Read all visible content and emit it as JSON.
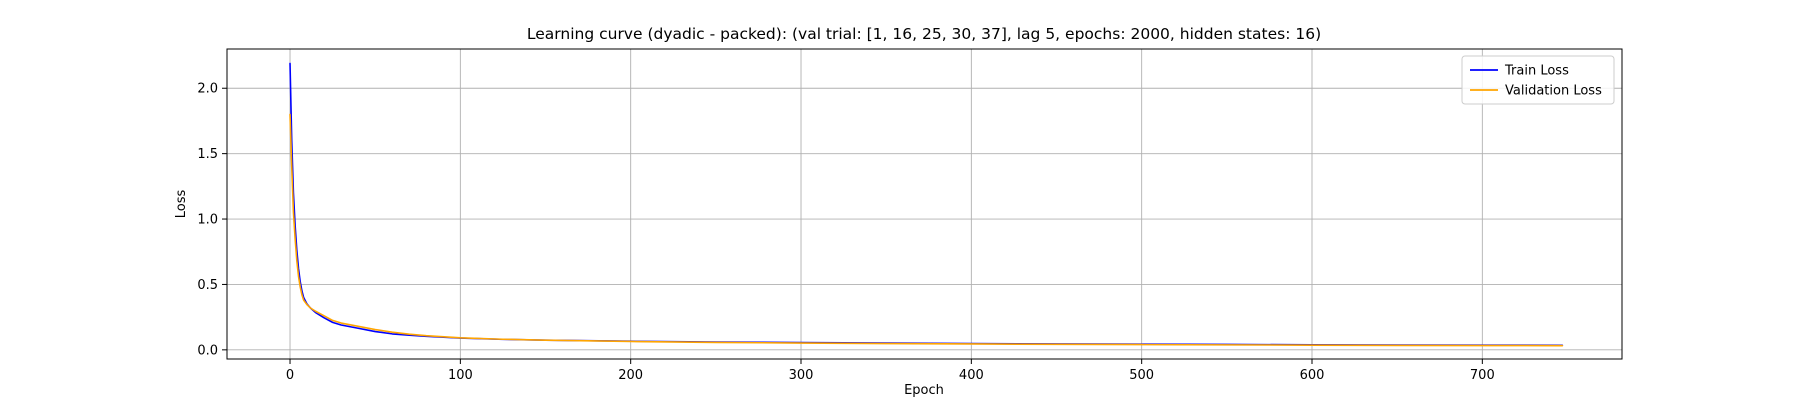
{
  "chart_data": {
    "type": "line",
    "title": "Learning curve (dyadic - packed): (val trial: [1, 16, 25, 30, 37], lag 5, epochs: 2000, hidden states: 16)",
    "xlabel": "Epoch",
    "ylabel": "Loss",
    "xlim": [
      -37,
      782
    ],
    "ylim": [
      -0.07,
      2.3
    ],
    "xticks": [
      0,
      100,
      200,
      300,
      400,
      500,
      600,
      700
    ],
    "yticks": [
      0.0,
      0.5,
      1.0,
      1.5,
      2.0
    ],
    "xtick_labels": [
      "0",
      "100",
      "200",
      "300",
      "400",
      "500",
      "600",
      "700"
    ],
    "ytick_labels": [
      "0.0",
      "0.5",
      "1.0",
      "1.5",
      "2.0"
    ],
    "grid": true,
    "legend_position": "top-right",
    "series": [
      {
        "name": "Train Loss",
        "color": "#0000ff",
        "x": [
          0,
          1,
          2,
          3,
          4,
          5,
          6,
          7,
          8,
          10,
          12,
          15,
          20,
          25,
          30,
          40,
          50,
          60,
          70,
          80,
          100,
          125,
          150,
          200,
          250,
          300,
          350,
          400,
          450,
          500,
          550,
          600,
          650,
          700,
          747
        ],
        "y": [
          2.19,
          1.6,
          1.2,
          0.95,
          0.76,
          0.62,
          0.52,
          0.45,
          0.4,
          0.35,
          0.32,
          0.285,
          0.245,
          0.21,
          0.19,
          0.165,
          0.14,
          0.122,
          0.112,
          0.103,
          0.09,
          0.08,
          0.074,
          0.066,
          0.06,
          0.056,
          0.052,
          0.048,
          0.045,
          0.043,
          0.041,
          0.039,
          0.037,
          0.036,
          0.035
        ]
      },
      {
        "name": "Validation Loss",
        "color": "#ffa500",
        "x": [
          0,
          1,
          2,
          3,
          4,
          5,
          6,
          7,
          8,
          10,
          12,
          15,
          20,
          25,
          30,
          40,
          50,
          60,
          70,
          80,
          100,
          125,
          150,
          200,
          250,
          300,
          350,
          400,
          450,
          500,
          550,
          600,
          650,
          700,
          747
        ],
        "y": [
          1.8,
          1.4,
          1.05,
          0.85,
          0.68,
          0.56,
          0.48,
          0.42,
          0.38,
          0.345,
          0.32,
          0.295,
          0.26,
          0.225,
          0.205,
          0.18,
          0.155,
          0.135,
          0.12,
          0.108,
          0.092,
          0.081,
          0.074,
          0.064,
          0.057,
          0.052,
          0.048,
          0.045,
          0.042,
          0.04,
          0.038,
          0.036,
          0.034,
          0.033,
          0.032
        ]
      }
    ]
  }
}
